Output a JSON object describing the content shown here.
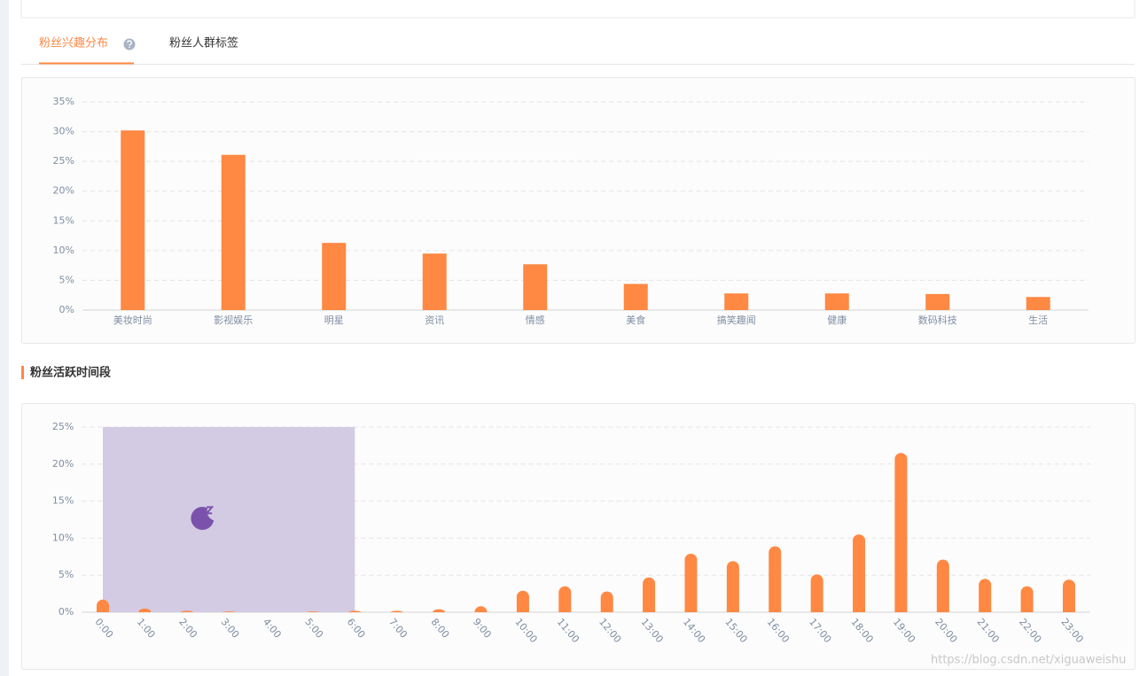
{
  "tabs": [
    "粉丝兴趣分布",
    "粉丝人群标签"
  ],
  "section_title": "粉丝活跃时间段",
  "watermark": "https://blog.csdn.net/xiguaweishu",
  "chart_data": [
    {
      "type": "bar",
      "color": "#ff8843",
      "grid": true,
      "categories": [
        "美妆时尚",
        "影视娱乐",
        "明星",
        "资讯",
        "情感",
        "美食",
        "搞笑趣闻",
        "健康",
        "数码科技",
        "生活"
      ],
      "values": [
        30.2,
        26.1,
        11.3,
        9.5,
        7.7,
        4.4,
        2.8,
        2.8,
        2.7,
        2.2
      ],
      "ylim": [
        0,
        35
      ],
      "yticks": [
        {
          "value": 0,
          "label": "0%"
        },
        {
          "value": 5,
          "label": "5%"
        },
        {
          "value": 10,
          "label": "10%"
        },
        {
          "value": 15,
          "label": "15%"
        },
        {
          "value": 20,
          "label": "20%"
        },
        {
          "value": 25,
          "label": "25%"
        },
        {
          "value": 30,
          "label": "30%"
        },
        {
          "value": 35,
          "label": "35%"
        }
      ]
    },
    {
      "type": "bar",
      "color": "#ff8843",
      "grid": true,
      "rounded": true,
      "categories": [
        "0:00",
        "1:00",
        "2:00",
        "3:00",
        "4:00",
        "5:00",
        "6:00",
        "7:00",
        "8:00",
        "9:00",
        "10:00",
        "11:00",
        "12:00",
        "13:00",
        "14:00",
        "15:00",
        "16:00",
        "17:00",
        "18:00",
        "19:00",
        "20:00",
        "21:00",
        "22:00",
        "23:00"
      ],
      "values": [
        1.7,
        0.5,
        0.2,
        0.1,
        0,
        0.1,
        0.2,
        0.2,
        0.4,
        0.8,
        2.9,
        3.5,
        2.8,
        4.7,
        7.9,
        6.9,
        8.9,
        5.1,
        10.5,
        21.5,
        7.1,
        4.5,
        3.5,
        4.4
      ],
      "mark_area": [
        "0:00",
        "6:00"
      ],
      "mark_area_color": "#d3cbe3",
      "ylim": [
        0,
        25
      ],
      "yticks": [
        {
          "value": 0,
          "label": "0%"
        },
        {
          "value": 5,
          "label": "5%"
        },
        {
          "value": 10,
          "label": "10%"
        },
        {
          "value": 15,
          "label": "15%"
        },
        {
          "value": 20,
          "label": "20%"
        },
        {
          "value": 25,
          "label": "25%"
        }
      ]
    }
  ]
}
